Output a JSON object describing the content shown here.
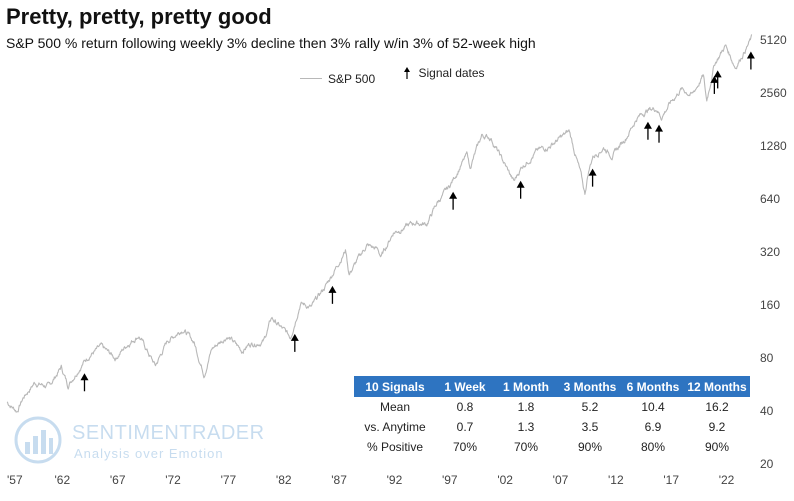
{
  "title": "Pretty, pretty, pretty good",
  "subtitle": "S&P 500 % return following weekly 3% decline then 3% rally w/in 3% of 52-week high",
  "legend": {
    "series_label": "S&P 500",
    "signal_label": "Signal dates"
  },
  "watermark": {
    "name": "SENTIMENTRADER",
    "tagline": "Analysis over Emotion"
  },
  "stats_table": {
    "headers": [
      "10 Signals",
      "1 Week",
      "1 Month",
      "3 Months",
      "6 Months",
      "12 Months"
    ],
    "rows": [
      [
        "Mean",
        "0.8",
        "1.8",
        "5.2",
        "10.4",
        "16.2"
      ],
      [
        "vs. Anytime",
        "0.7",
        "1.3",
        "3.5",
        "6.9",
        "9.2"
      ],
      [
        "% Positive",
        "70%",
        "70%",
        "90%",
        "80%",
        "90%"
      ]
    ]
  },
  "colors": {
    "series_line": "#b8b8b8",
    "table_header": "#2e74c1",
    "arrow": "#000000"
  },
  "chart_data": {
    "type": "line",
    "y_scale": "log2",
    "ylim": [
      20,
      6000
    ],
    "xlim": [
      1957,
      2024.3
    ],
    "x_tick_labels": [
      "'57",
      "'62",
      "'67",
      "'72",
      "'77",
      "'82",
      "'87",
      "'92",
      "'97",
      "'02",
      "'07",
      "'12",
      "'17",
      "'22"
    ],
    "x_tick_values": [
      1957,
      1962,
      1967,
      1972,
      1977,
      1982,
      1987,
      1992,
      1997,
      2002,
      2007,
      2012,
      2017,
      2022
    ],
    "y_tick_labels": [
      "20",
      "40",
      "80",
      "160",
      "320",
      "640",
      "1280",
      "2560",
      "5120"
    ],
    "y_tick_values": [
      20,
      40,
      80,
      160,
      320,
      640,
      1280,
      2560,
      5120
    ],
    "series": [
      {
        "name": "S&P 500",
        "x": [
          1957.0,
          1957.9,
          1958.5,
          1959.5,
          1960.8,
          1961.9,
          1962.5,
          1963.5,
          1964.5,
          1965.5,
          1966.8,
          1967.9,
          1968.9,
          1970.4,
          1971.5,
          1972.9,
          1973.9,
          1974.8,
          1975.5,
          1976.9,
          1978.2,
          1978.9,
          1980.2,
          1980.9,
          1982.6,
          1983.5,
          1984.5,
          1985.9,
          1987.6,
          1987.9,
          1989.5,
          1990.5,
          1990.8,
          1991.9,
          1993.9,
          1994.9,
          1995.9,
          1996.9,
          1997.9,
          1998.6,
          1998.8,
          1999.9,
          2000.7,
          2001.7,
          2002.8,
          2003.5,
          2004.9,
          2006.0,
          2007.8,
          2008.8,
          2009.2,
          2009.5,
          2009.9,
          2010.9,
          2011.7,
          2012.9,
          2013.9,
          2014.9,
          2015.7,
          2016.1,
          2016.9,
          2017.9,
          2018.9,
          2019.9,
          2020.2,
          2020.9,
          2021.9,
          2022.8,
          2023.3,
          2023.9,
          2024.3
        ],
        "y": [
          45,
          40,
          48,
          58,
          55,
          71,
          56,
          70,
          84,
          92,
          80,
          96,
          108,
          72,
          100,
          118,
          98,
          65,
          90,
          107,
          88,
          96,
          100,
          135,
          105,
          165,
          155,
          211,
          330,
          240,
          350,
          330,
          300,
          415,
          470,
          460,
          615,
          740,
          970,
          1150,
          960,
          1469,
          1430,
          1080,
          800,
          980,
          1200,
          1280,
          1550,
          900,
          680,
          900,
          1115,
          1260,
          1130,
          1430,
          1850,
          2060,
          2100,
          1870,
          2240,
          2700,
          2500,
          3230,
          2300,
          3750,
          4770,
          3600,
          4100,
          4770,
          5300
        ]
      }
    ],
    "signals": [
      1964.0,
      1983.0,
      1986.4,
      1997.3,
      2003.4,
      2009.9,
      2014.9,
      2015.9,
      2020.9,
      2021.2,
      2024.2
    ]
  }
}
